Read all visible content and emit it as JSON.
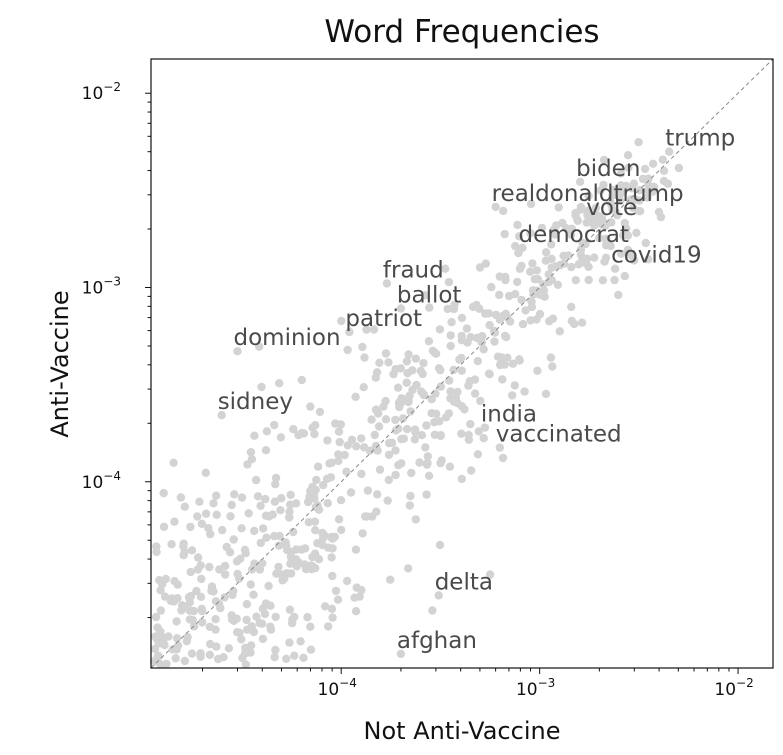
{
  "chart_data": {
    "type": "scatter",
    "title": "Word Frequencies",
    "xlabel": "Not Anti-Vaccine",
    "ylabel": "Anti-Vaccine",
    "x_scale": "log",
    "y_scale": "log",
    "xlim": [
      1.1e-05,
      0.015
    ],
    "ylim": [
      1.1e-05,
      0.015
    ],
    "x_ticks": [
      {
        "value": 0.0001,
        "base": "10",
        "exp": "−4"
      },
      {
        "value": 0.001,
        "base": "10",
        "exp": "−3"
      },
      {
        "value": 0.01,
        "base": "10",
        "exp": "−2"
      }
    ],
    "y_ticks": [
      {
        "value": 0.0001,
        "base": "10",
        "exp": "−4"
      },
      {
        "value": 0.001,
        "base": "10",
        "exp": "−3"
      },
      {
        "value": 0.01,
        "base": "10",
        "exp": "−2"
      }
    ],
    "diagonal_reference_line": true,
    "point_color": "#d3d3d3",
    "labeled_points": [
      {
        "word": "trump",
        "x": 0.0045,
        "y": 0.005
      },
      {
        "word": "biden",
        "x": 0.0016,
        "y": 0.0035
      },
      {
        "word": "realdonaldtrump",
        "x": 0.0006,
        "y": 0.0026
      },
      {
        "word": "vote",
        "x": 0.0018,
        "y": 0.0022
      },
      {
        "word": "democrat",
        "x": 0.00082,
        "y": 0.0016
      },
      {
        "word": "covid19",
        "x": 0.0024,
        "y": 0.00125
      },
      {
        "word": "fraud",
        "x": 0.00017,
        "y": 0.00105
      },
      {
        "word": "ballot",
        "x": 0.0002,
        "y": 0.00078
      },
      {
        "word": "patriot",
        "x": 0.00011,
        "y": 0.00059
      },
      {
        "word": "dominion",
        "x": 3e-05,
        "y": 0.00047
      },
      {
        "word": "sidney",
        "x": 2.5e-05,
        "y": 0.00022
      },
      {
        "word": "india",
        "x": 0.00053,
        "y": 0.00019
      },
      {
        "word": "vaccinated",
        "x": 0.00063,
        "y": 0.00015
      },
      {
        "word": "delta",
        "x": 0.00031,
        "y": 2.6e-05
      },
      {
        "word": "afghan",
        "x": 0.0002,
        "y": 1.3e-05
      }
    ],
    "background_points_description_count": 900
  }
}
